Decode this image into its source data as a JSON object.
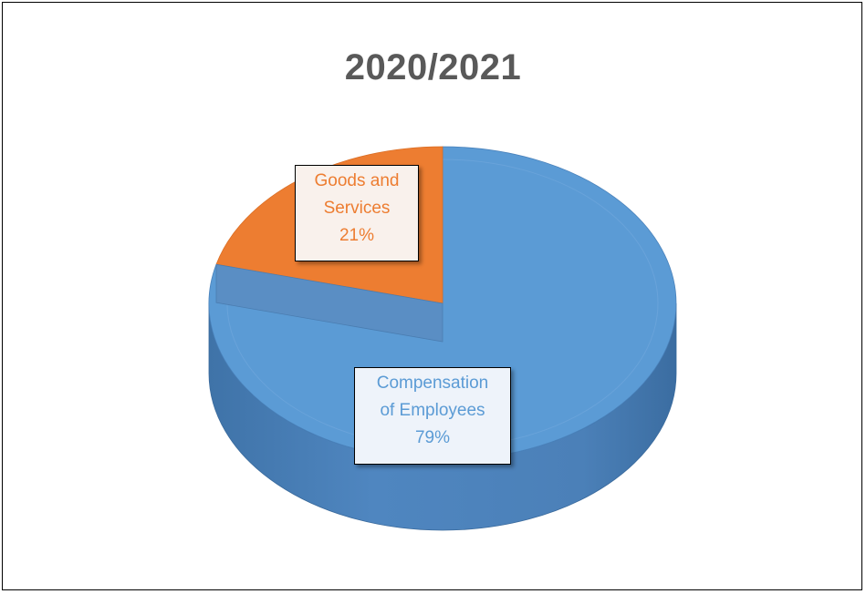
{
  "chart_data": {
    "type": "pie",
    "title": "2020/2021",
    "categories": [
      "Compensation of Employees",
      "Goods and Services"
    ],
    "values": [
      79,
      21
    ],
    "colors": [
      "#5b9bd5",
      "#ed7d31"
    ],
    "labels": [
      {
        "line1": "Compensation",
        "line2": "of Employees",
        "pct": "79%"
      },
      {
        "line1": "Goods and",
        "line2": "Services",
        "pct": "21%"
      }
    ],
    "style": "3d",
    "legend": "none"
  }
}
